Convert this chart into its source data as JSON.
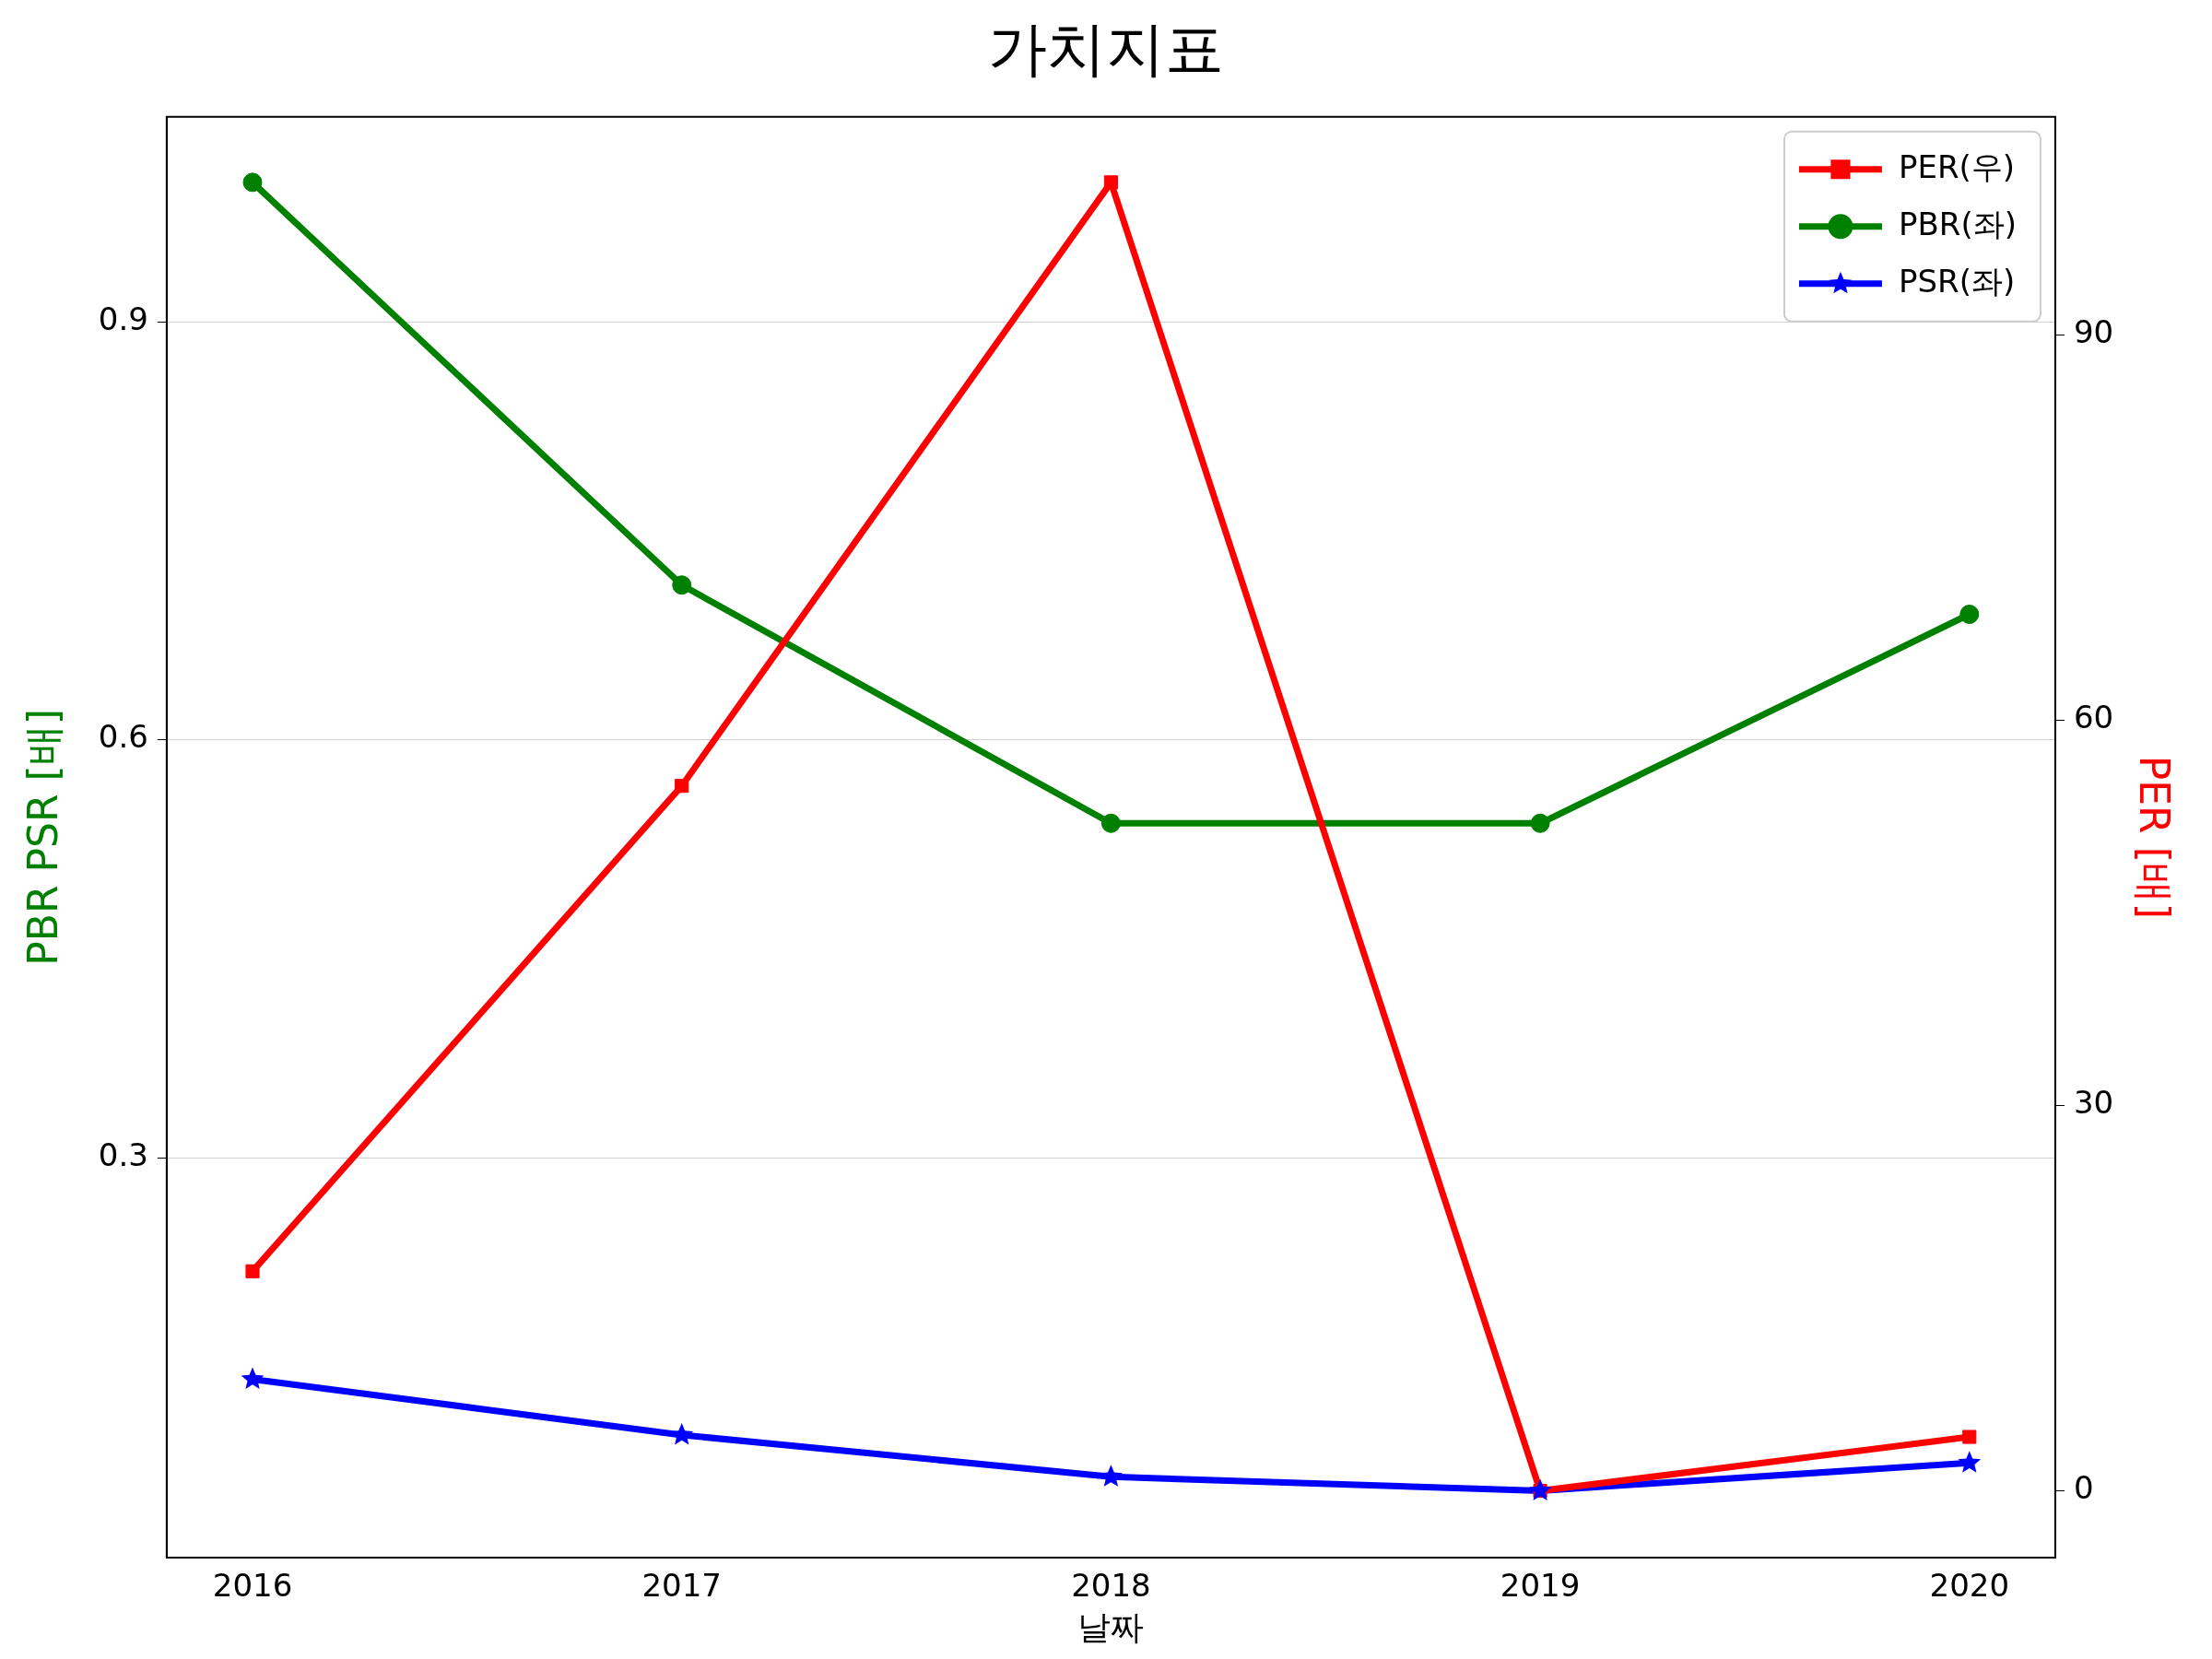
{
  "chart_data": {
    "type": "line",
    "title": "가치지표",
    "xlabel": "날짜",
    "ylabel": "PBR PSR [배]",
    "y2label": "PER [배]",
    "x": [
      2016,
      2017,
      2018,
      2019,
      2020
    ],
    "xlim": [
      2015.8,
      2020.2
    ],
    "xticks": [
      2016,
      2017,
      2018,
      2019,
      2020
    ],
    "ylim": [
      0.013,
      1.047
    ],
    "yticks": [
      0.3,
      0.6,
      0.9
    ],
    "y2lim": [
      -5.2,
      107
    ],
    "y2ticks": [
      0,
      30,
      60,
      90
    ],
    "grid": "y",
    "legend": "top right",
    "series": [
      {
        "name": "PER(우)",
        "color": "#ff0000",
        "axis": "y2",
        "marker": "square",
        "values": [
          17.1,
          54.9,
          101.9,
          0,
          4.2
        ]
      },
      {
        "name": "PBR(좌)",
        "color": "#008000",
        "axis": "y",
        "marker": "circle",
        "values": [
          1.0,
          0.711,
          0.54,
          0.54,
          0.69
        ]
      },
      {
        "name": "PSR(좌)",
        "color": "#0000ff",
        "axis": "y",
        "marker": "star",
        "values": [
          0.141,
          0.101,
          0.071,
          0.061,
          0.081
        ]
      }
    ]
  }
}
